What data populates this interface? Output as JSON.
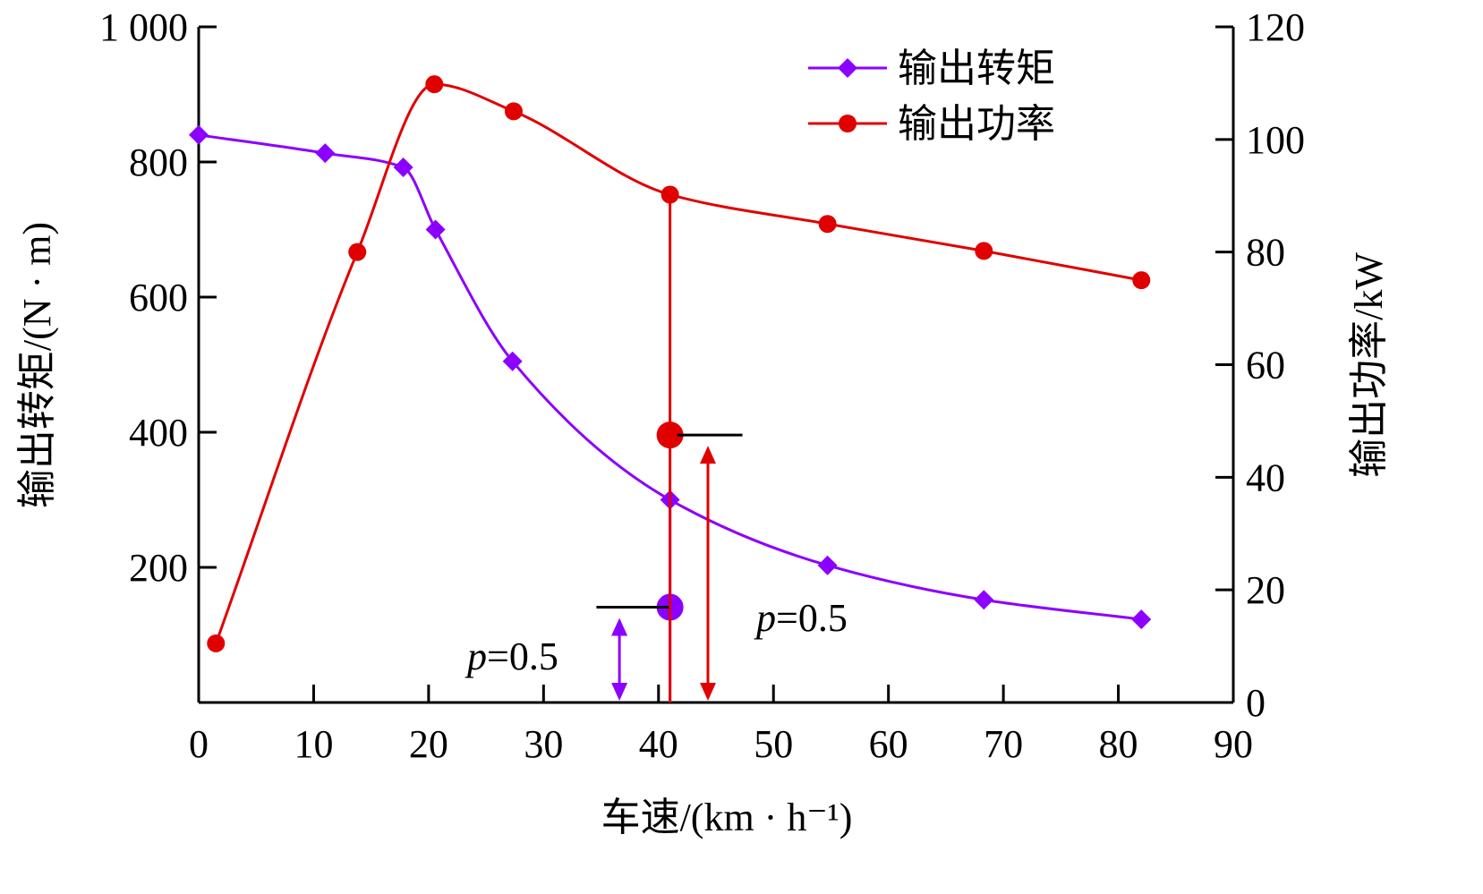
{
  "chart_data": {
    "type": "line",
    "title": "",
    "xlabel": "车速/(km · h⁻¹)",
    "ylabel_left": "输出转矩/(N · m)",
    "ylabel_right": "输出功率/kW",
    "xlim": [
      0,
      90
    ],
    "ylim_left": [
      0,
      1000
    ],
    "ylim_right": [
      0,
      120
    ],
    "x_ticks": [
      0,
      10,
      20,
      30,
      40,
      50,
      60,
      70,
      80,
      90
    ],
    "x_tick_labels": [
      "0",
      "10",
      "20",
      "30",
      "40",
      "50",
      "60",
      "70",
      "80",
      "90"
    ],
    "y_left_ticks": [
      200,
      400,
      600,
      800,
      1000
    ],
    "y_left_tick_labels": [
      "200",
      "400",
      "600",
      "800",
      "1 000"
    ],
    "y_right_ticks": [
      0,
      20,
      40,
      60,
      80,
      100,
      120
    ],
    "y_right_tick_labels": [
      "0",
      "20",
      "40",
      "60",
      "80",
      "100",
      "120"
    ],
    "grid": false,
    "legend_position": "top-right",
    "series": [
      {
        "name": "输出转矩",
        "axis": "left",
        "color": "#8B00FF",
        "marker": "diamond",
        "points": [
          [
            0,
            840
          ],
          [
            11,
            813
          ],
          [
            17.8,
            792
          ],
          [
            20.6,
            700
          ],
          [
            27.3,
            505
          ],
          [
            41,
            300
          ],
          [
            54.7,
            203
          ],
          [
            68.3,
            152
          ],
          [
            82,
            123
          ]
        ]
      },
      {
        "name": "输出功率",
        "axis": "right",
        "color": "#E00000",
        "marker": "circle",
        "points": [
          [
            1.5,
            10.5
          ],
          [
            13.8,
            80
          ],
          [
            20.5,
            109.8
          ],
          [
            27.4,
            105
          ],
          [
            41,
            90.2
          ],
          [
            54.7,
            85
          ],
          [
            68.3,
            80.2
          ],
          [
            82,
            75
          ]
        ]
      }
    ],
    "annotations": [
      {
        "series": "输出转矩",
        "x": 41,
        "y": 141,
        "label": "p=0.5",
        "label_prefix": "p",
        "label_suffix": "=0.5"
      },
      {
        "series": "输出功率",
        "x": 41,
        "y": 47.5,
        "label": "p=0.5",
        "label_prefix": "p",
        "label_suffix": "=0.5"
      }
    ]
  }
}
